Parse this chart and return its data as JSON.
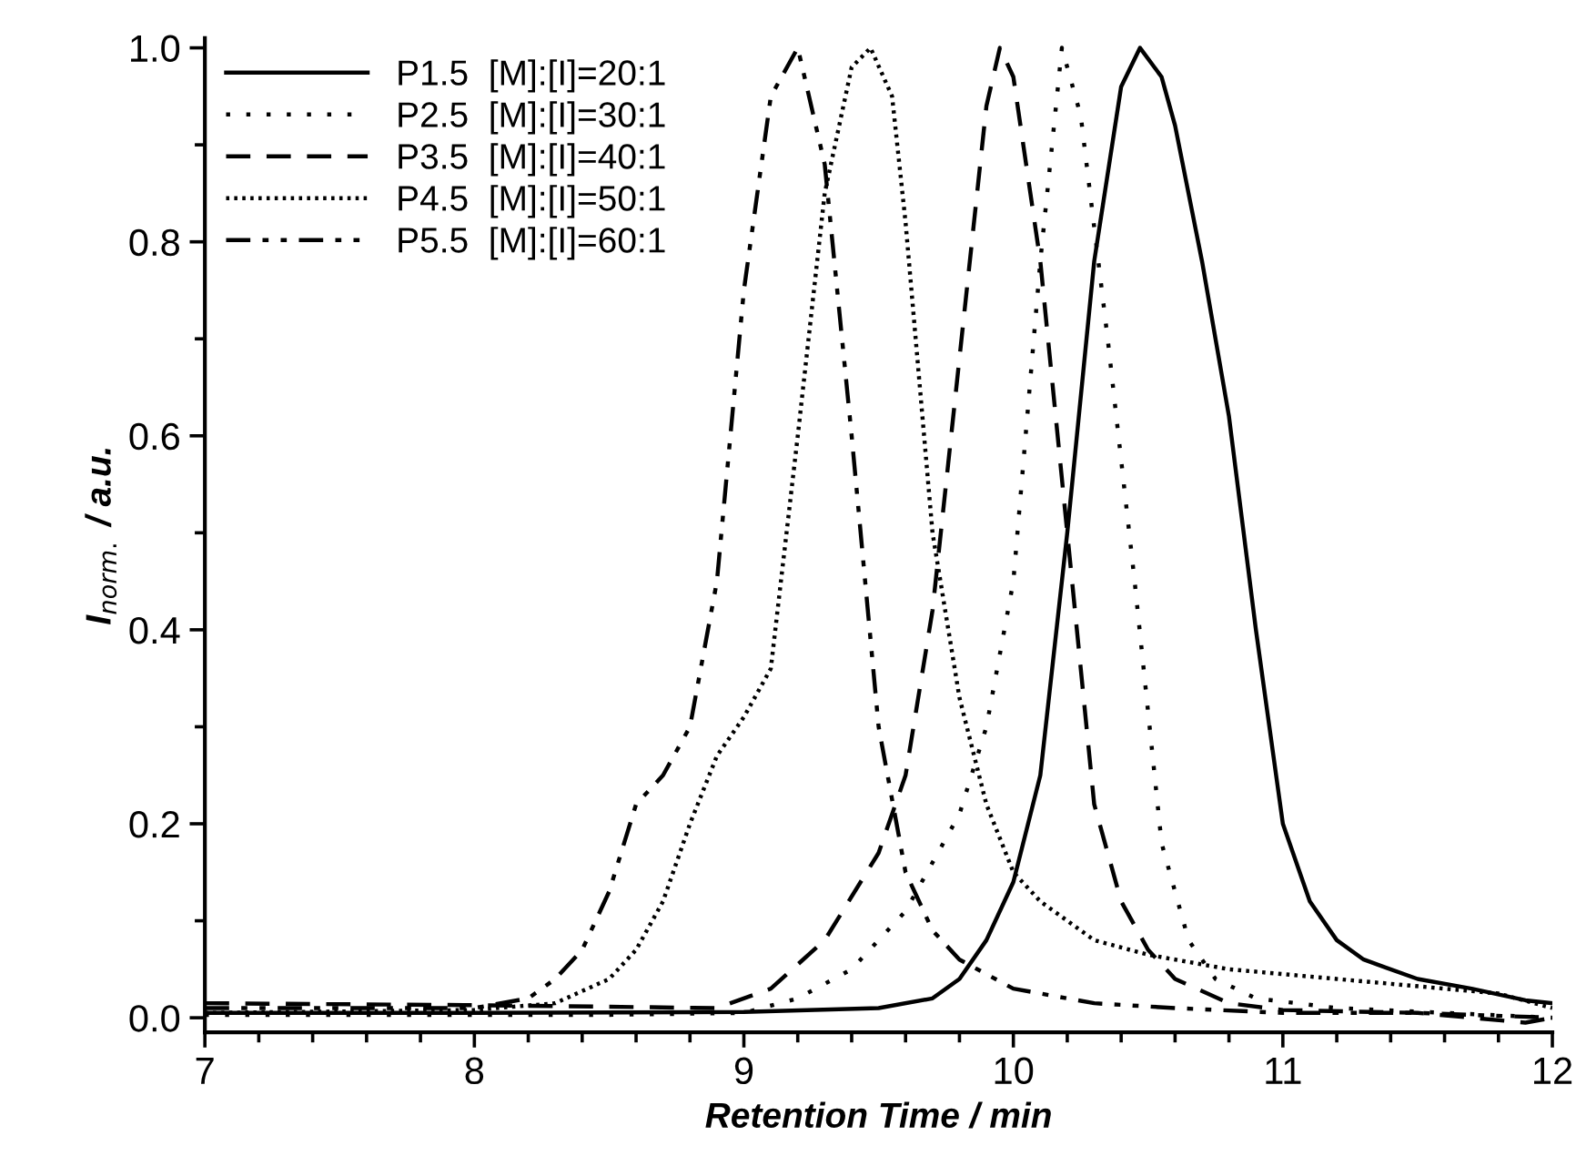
{
  "chart_data": {
    "type": "line",
    "xlabel": "Retention Time / min",
    "ylabel": "I$_{norm.}$ / a.u.",
    "xlim": [
      7,
      12
    ],
    "xticks": [
      7,
      8,
      9,
      10,
      11,
      12
    ],
    "ylim": [
      -0.015,
      1.01
    ],
    "yticks": [
      {
        "value": 0,
        "label": "0.0"
      },
      {
        "value": 0.2,
        "label": "0.2"
      },
      {
        "value": 0.4,
        "label": "0.4"
      },
      {
        "value": 0.6,
        "label": "0.6"
      },
      {
        "value": 0.8,
        "label": "0.8"
      },
      {
        "value": 1.0,
        "label": "1.0"
      }
    ],
    "grid": false,
    "legend": "top left",
    "marker": "none",
    "series": [
      {
        "name": "P1.5  [M]:[I]=20:1",
        "color": "#000000",
        "line_style": "solid",
        "x": [
          7,
          8,
          9,
          9.5,
          9.7,
          9.8,
          9.9,
          10.0,
          10.1,
          10.2,
          10.3,
          10.4,
          10.47,
          10.55,
          10.6,
          10.7,
          10.8,
          10.9,
          11.0,
          11.1,
          11.2,
          11.3,
          11.5,
          11.7,
          11.9,
          12
        ],
        "values": [
          0.005,
          0.005,
          0.006,
          0.01,
          0.02,
          0.04,
          0.08,
          0.14,
          0.25,
          0.5,
          0.78,
          0.96,
          1.0,
          0.97,
          0.92,
          0.78,
          0.62,
          0.4,
          0.2,
          0.12,
          0.08,
          0.06,
          0.04,
          0.03,
          0.018,
          0.015
        ]
      },
      {
        "name": "P2.5  [M]:[I]=30:1",
        "color": "#000000",
        "line_style": "dotted",
        "x": [
          7,
          8.5,
          9.0,
          9.2,
          9.4,
          9.6,
          9.8,
          9.9,
          10.0,
          10.1,
          10.18,
          10.25,
          10.35,
          10.45,
          10.55,
          10.65,
          10.75,
          10.9,
          11.2,
          11.6,
          12
        ],
        "values": [
          0.003,
          0.003,
          0.005,
          0.02,
          0.05,
          0.11,
          0.21,
          0.3,
          0.45,
          0.78,
          1.0,
          0.93,
          0.7,
          0.45,
          0.18,
          0.08,
          0.04,
          0.02,
          0.01,
          0.005,
          0.0
        ]
      },
      {
        "name": "P3.5  [M]:[I]=40:1",
        "color": "#000000",
        "line_style": "dashed",
        "x": [
          7,
          8,
          8.9,
          9.1,
          9.3,
          9.5,
          9.6,
          9.7,
          9.8,
          9.9,
          9.95,
          10.0,
          10.1,
          10.2,
          10.3,
          10.4,
          10.5,
          10.6,
          10.8,
          11.0,
          11.5,
          11.9,
          12
        ],
        "values": [
          0.015,
          0.013,
          0.01,
          0.03,
          0.08,
          0.17,
          0.25,
          0.42,
          0.68,
          0.94,
          1.0,
          0.97,
          0.78,
          0.5,
          0.22,
          0.12,
          0.07,
          0.04,
          0.015,
          0.008,
          0.005,
          -0.005,
          0.0
        ]
      },
      {
        "name": "P4.5  [M]:[I]=50:1",
        "color": "#000000",
        "line_style": "fine dotted",
        "x": [
          7,
          8.0,
          8.3,
          8.5,
          8.6,
          8.7,
          8.8,
          8.9,
          9.0,
          9.1,
          9.2,
          9.3,
          9.4,
          9.47,
          9.55,
          9.6,
          9.7,
          9.8,
          9.9,
          10.0,
          10.1,
          10.3,
          10.5,
          10.8,
          11.2,
          11.6,
          11.8,
          12
        ],
        "values": [
          0.005,
          0.008,
          0.015,
          0.04,
          0.07,
          0.12,
          0.2,
          0.27,
          0.31,
          0.36,
          0.6,
          0.85,
          0.98,
          1.0,
          0.95,
          0.82,
          0.5,
          0.33,
          0.22,
          0.15,
          0.12,
          0.08,
          0.065,
          0.05,
          0.04,
          0.03,
          0.025,
          0.01
        ]
      },
      {
        "name": "P5.5  [M]:[I]=60:1",
        "color": "#000000",
        "line_style": "dash-dot-dot",
        "x": [
          7,
          8.0,
          8.2,
          8.3,
          8.4,
          8.5,
          8.6,
          8.7,
          8.8,
          8.9,
          9.0,
          9.1,
          9.2,
          9.3,
          9.4,
          9.5,
          9.6,
          9.7,
          9.8,
          10.0,
          10.3,
          10.6,
          11.0,
          11.5,
          12
        ],
        "values": [
          0.01,
          0.01,
          0.02,
          0.04,
          0.07,
          0.13,
          0.22,
          0.25,
          0.3,
          0.45,
          0.75,
          0.95,
          1.0,
          0.88,
          0.6,
          0.3,
          0.15,
          0.09,
          0.06,
          0.03,
          0.015,
          0.01,
          0.005,
          0.005,
          0.0
        ]
      }
    ]
  }
}
